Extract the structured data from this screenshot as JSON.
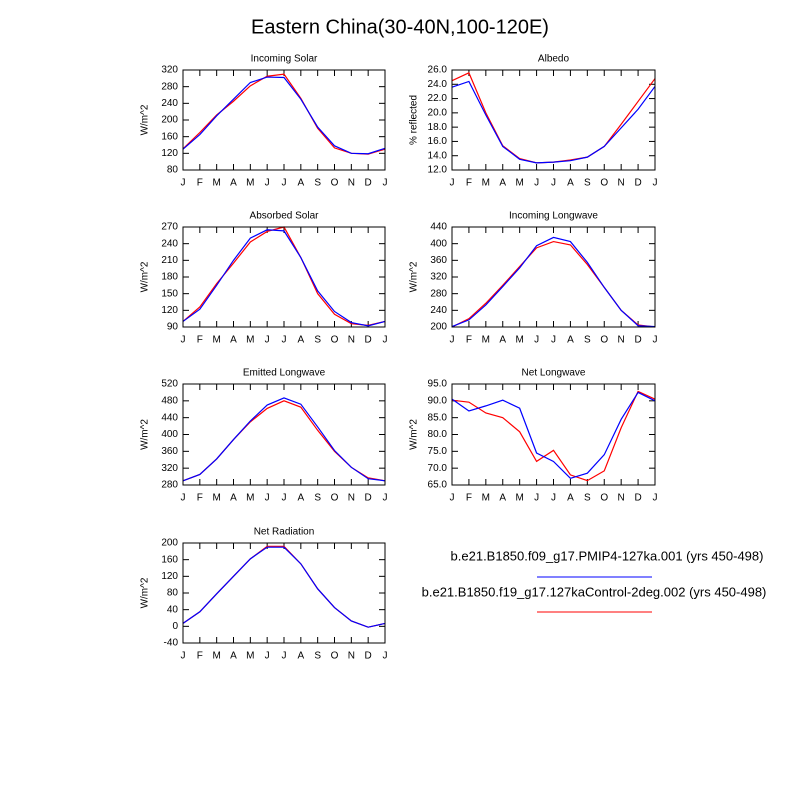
{
  "title": "Eastern China(30-40N,100-120E)",
  "legend": [
    {
      "name": "b.e21.B1850.f09_g17.PMIP4-127ka.001 (yrs 450-498)",
      "color": "#0000ff"
    },
    {
      "name": "b.e21.B1850.f19_g17.127kaControl-2deg.002 (yrs 450-498)",
      "color": "#ff0000"
    }
  ],
  "chart_data": [
    {
      "type": "line",
      "title": "Incoming Solar",
      "y_label": "W/m^2",
      "categories": [
        "J",
        "F",
        "M",
        "A",
        "M",
        "J",
        "J",
        "A",
        "S",
        "O",
        "N",
        "D",
        "J"
      ],
      "ylim": [
        80,
        320
      ],
      "yticks": [
        80,
        120,
        160,
        200,
        240,
        280,
        320
      ],
      "series": [
        {
          "color": "#ff0000",
          "values": [
            131,
            170,
            212,
            245,
            282,
            305,
            310,
            252,
            180,
            133,
            120,
            118,
            130
          ]
        },
        {
          "color": "#0000ff",
          "values": [
            130,
            165,
            210,
            250,
            290,
            303,
            302,
            250,
            183,
            138,
            120,
            119,
            132
          ]
        }
      ]
    },
    {
      "type": "line",
      "title": "Albedo",
      "y_label": "% reflected",
      "categories": [
        "J",
        "F",
        "M",
        "A",
        "M",
        "J",
        "J",
        "A",
        "S",
        "O",
        "N",
        "D",
        "J"
      ],
      "ylim": [
        12,
        26
      ],
      "yticks": [
        {
          "value": 12,
          "label": "12.0"
        },
        {
          "value": 14,
          "label": "14.0"
        },
        {
          "value": 16,
          "label": "16.0"
        },
        {
          "value": 18,
          "label": "18.0"
        },
        {
          "value": 20,
          "label": "20.0"
        },
        {
          "value": 22,
          "label": "22.0"
        },
        {
          "value": 24,
          "label": "24.0"
        },
        {
          "value": 26,
          "label": "26.0"
        }
      ],
      "series": [
        {
          "color": "#ff0000",
          "values": [
            24.5,
            25.6,
            20.0,
            15.4,
            13.6,
            13.0,
            13.1,
            13.4,
            13.8,
            15.3,
            18.4,
            21.6,
            24.8
          ]
        },
        {
          "color": "#0000ff",
          "values": [
            23.6,
            24.4,
            19.7,
            15.3,
            13.5,
            13.0,
            13.1,
            13.3,
            13.8,
            15.3,
            17.9,
            20.5,
            23.7
          ]
        }
      ]
    },
    {
      "type": "line",
      "title": "Absorbed Solar",
      "y_label": "W/m^2",
      "categories": [
        "J",
        "F",
        "M",
        "A",
        "M",
        "J",
        "J",
        "A",
        "S",
        "O",
        "N",
        "D",
        "J"
      ],
      "ylim": [
        90,
        270
      ],
      "yticks": [
        90,
        120,
        150,
        180,
        210,
        240,
        270
      ],
      "series": [
        {
          "color": "#ff0000",
          "values": [
            100,
            126,
            168,
            205,
            243,
            262,
            270,
            215,
            150,
            113,
            96,
            93,
            100
          ]
        },
        {
          "color": "#0000ff",
          "values": [
            100,
            122,
            165,
            210,
            250,
            265,
            263,
            215,
            155,
            118,
            98,
            92,
            100
          ]
        }
      ]
    },
    {
      "type": "line",
      "title": "Incoming Longwave",
      "y_label": "W/m^2",
      "categories": [
        "J",
        "F",
        "M",
        "A",
        "M",
        "J",
        "J",
        "A",
        "S",
        "O",
        "N",
        "D",
        "J"
      ],
      "ylim": [
        200,
        440
      ],
      "yticks": [
        200,
        240,
        280,
        320,
        360,
        400,
        440
      ],
      "series": [
        {
          "color": "#ff0000",
          "values": [
            200,
            220,
            257,
            300,
            345,
            390,
            405,
            397,
            350,
            295,
            240,
            205,
            200
          ]
        },
        {
          "color": "#0000ff",
          "values": [
            201,
            217,
            253,
            297,
            342,
            395,
            415,
            405,
            355,
            295,
            240,
            203,
            201
          ]
        }
      ]
    },
    {
      "type": "line",
      "title": "Emitted Longwave",
      "y_label": "W/m^2",
      "categories": [
        "J",
        "F",
        "M",
        "A",
        "M",
        "J",
        "J",
        "A",
        "S",
        "O",
        "N",
        "D",
        "J"
      ],
      "ylim": [
        280,
        520
      ],
      "yticks": [
        280,
        320,
        360,
        400,
        440,
        480,
        520
      ],
      "series": [
        {
          "color": "#ff0000",
          "values": [
            290,
            305,
            342,
            388,
            430,
            462,
            480,
            465,
            410,
            360,
            322,
            297,
            290
          ]
        },
        {
          "color": "#0000ff",
          "values": [
            290,
            305,
            342,
            388,
            432,
            470,
            487,
            472,
            418,
            362,
            322,
            295,
            290
          ]
        }
      ]
    },
    {
      "type": "line",
      "title": "Net Longwave",
      "y_label": "W/m^2",
      "categories": [
        "J",
        "F",
        "M",
        "A",
        "M",
        "J",
        "J",
        "A",
        "S",
        "O",
        "N",
        "D",
        "J"
      ],
      "ylim": [
        65,
        95
      ],
      "yticks": [
        {
          "value": 65,
          "label": "65.0"
        },
        {
          "value": 70,
          "label": "70.0"
        },
        {
          "value": 75,
          "label": "75.0"
        },
        {
          "value": 80,
          "label": "80.0"
        },
        {
          "value": 85,
          "label": "85.0"
        },
        {
          "value": 90,
          "label": "90.0"
        },
        {
          "value": 95,
          "label": "95.0"
        }
      ],
      "series": [
        {
          "color": "#ff0000",
          "values": [
            90.2,
            89.6,
            86.4,
            85.0,
            80.8,
            72.0,
            75.3,
            68.0,
            66.3,
            69.2,
            82.0,
            92.8,
            90.5
          ]
        },
        {
          "color": "#0000ff",
          "values": [
            90.5,
            87.0,
            88.5,
            90.2,
            87.8,
            74.5,
            72.0,
            67.0,
            68.5,
            74.0,
            84.5,
            92.5,
            90.0
          ]
        }
      ]
    },
    {
      "type": "line",
      "title": "Net Radiation",
      "y_label": "W/m^2",
      "categories": [
        "J",
        "F",
        "M",
        "A",
        "M",
        "J",
        "J",
        "A",
        "S",
        "O",
        "N",
        "D",
        "J"
      ],
      "ylim": [
        -40,
        200
      ],
      "yticks": [
        -40,
        0,
        40,
        80,
        120,
        160,
        200
      ],
      "series": [
        {
          "color": "#ff0000",
          "values": [
            7,
            35,
            78,
            120,
            162,
            192,
            192,
            150,
            90,
            45,
            13,
            -2,
            7
          ]
        },
        {
          "color": "#0000ff",
          "values": [
            7,
            35,
            78,
            120,
            162,
            190,
            190,
            150,
            90,
            45,
            13,
            -2,
            7
          ]
        }
      ]
    }
  ]
}
